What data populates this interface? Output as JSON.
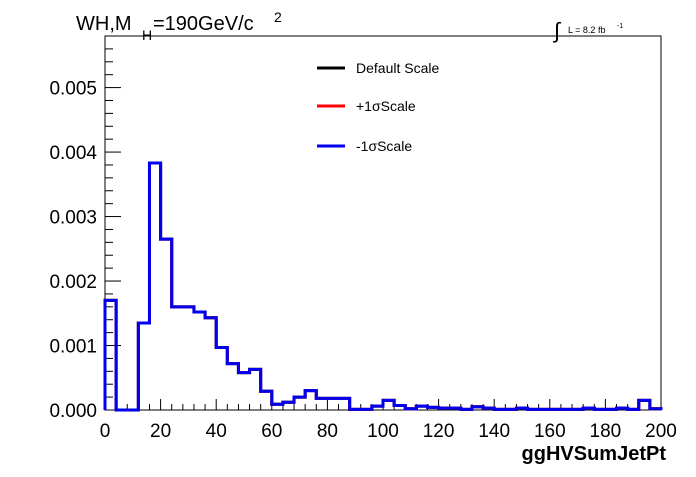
{
  "chart_data": {
    "type": "step-histogram",
    "title": {
      "main": "WH,M",
      "subscript": "H",
      "rest": "=190GeV/c",
      "superscript": "2"
    },
    "lumi": {
      "integral_sign": "∫",
      "text": "L = 8.2 fb",
      "superscript": "-1"
    },
    "xlabel": "ggHVSumJetPt",
    "xlim": [
      0,
      200
    ],
    "ylim": [
      0,
      0.0058
    ],
    "x_ticks": [
      "0",
      "20",
      "40",
      "60",
      "80",
      "100",
      "120",
      "140",
      "160",
      "180",
      "200"
    ],
    "y_ticks": [
      "0.000",
      "0.001",
      "0.002",
      "0.003",
      "0.004",
      "0.005"
    ],
    "bin_edges": [
      0,
      4,
      8,
      12,
      16,
      20,
      24,
      28,
      32,
      36,
      40,
      44,
      48,
      52,
      56,
      60,
      64,
      68,
      72,
      76,
      80,
      84,
      88,
      92,
      96,
      100,
      104,
      108,
      112,
      116,
      120,
      124,
      128,
      132,
      136,
      140,
      144,
      148,
      152,
      156,
      160,
      164,
      168,
      172,
      176,
      180,
      184,
      188,
      192,
      196,
      200
    ],
    "series": [
      {
        "name": "Default Scale",
        "color": "#000000",
        "values": [
          0.0017,
          0,
          0,
          0.00135,
          0.00383,
          0.00265,
          0.0016,
          0.0016,
          0.00152,
          0.00143,
          0.00097,
          0.00072,
          0.00058,
          0.00063,
          0.00029,
          9e-05,
          0.00012,
          0.0002,
          0.0003,
          0.00018,
          0.00018,
          0.00018,
          1e-05,
          1e-05,
          6e-05,
          0.00015,
          7e-05,
          2e-05,
          6e-05,
          4e-05,
          3e-05,
          3e-05,
          1e-05,
          5e-05,
          3e-05,
          1e-05,
          1e-05,
          3e-05,
          1e-05,
          1e-05,
          1e-05,
          1e-05,
          1e-05,
          3e-05,
          1e-05,
          1e-05,
          3e-05,
          1e-05,
          0.00015,
          2e-05
        ]
      },
      {
        "name": "+1σScale",
        "color": "#ff0000",
        "values": [
          0.0017,
          0,
          0,
          0.00135,
          0.00383,
          0.00265,
          0.0016,
          0.0016,
          0.00152,
          0.00143,
          0.00097,
          0.00072,
          0.00058,
          0.00063,
          0.00029,
          9e-05,
          0.00012,
          0.0002,
          0.0003,
          0.00018,
          0.00018,
          0.00018,
          1e-05,
          1e-05,
          6e-05,
          0.00015,
          7e-05,
          2e-05,
          6e-05,
          4e-05,
          3e-05,
          3e-05,
          1e-05,
          5e-05,
          3e-05,
          1e-05,
          1e-05,
          3e-05,
          1e-05,
          1e-05,
          1e-05,
          1e-05,
          1e-05,
          3e-05,
          1e-05,
          1e-05,
          3e-05,
          1e-05,
          0.00015,
          2e-05
        ]
      },
      {
        "name": "-1σScale",
        "color": "#0000ee",
        "values": [
          0.0017,
          0,
          0,
          0.00135,
          0.00383,
          0.00265,
          0.0016,
          0.0016,
          0.00152,
          0.00143,
          0.00097,
          0.00072,
          0.00058,
          0.00063,
          0.00029,
          9e-05,
          0.00012,
          0.0002,
          0.0003,
          0.00018,
          0.00018,
          0.00018,
          1e-05,
          1e-05,
          6e-05,
          0.00015,
          7e-05,
          2e-05,
          6e-05,
          4e-05,
          3e-05,
          3e-05,
          1e-05,
          5e-05,
          3e-05,
          1e-05,
          1e-05,
          3e-05,
          1e-05,
          1e-05,
          1e-05,
          1e-05,
          1e-05,
          3e-05,
          1e-05,
          1e-05,
          3e-05,
          1e-05,
          0.00015,
          2e-05
        ]
      }
    ],
    "grid": false,
    "legend_position": "top-center"
  }
}
